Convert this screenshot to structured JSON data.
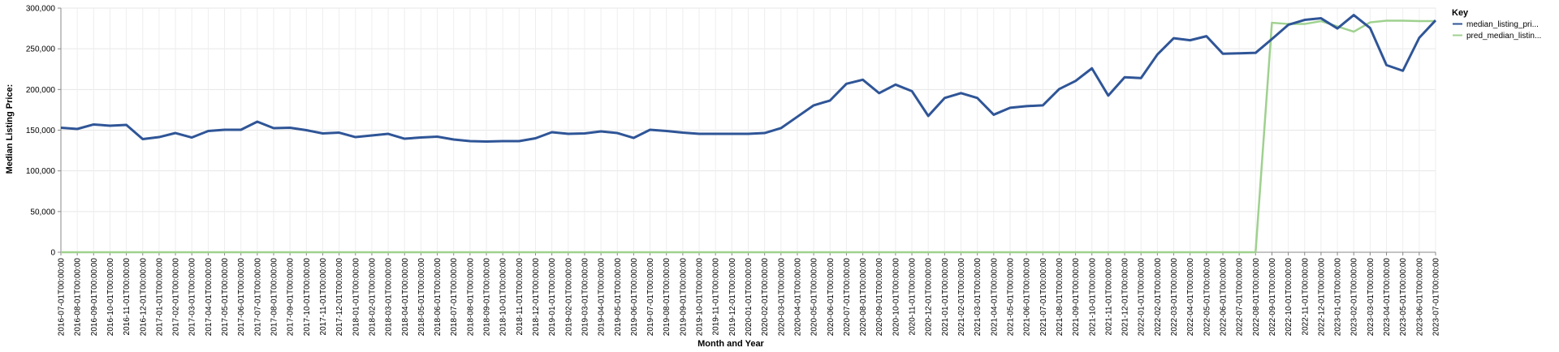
{
  "chart_data": {
    "type": "line",
    "xlabel": "Month and Year",
    "ylabel": "Median Listing Price:",
    "ylim": [
      0,
      300000
    ],
    "yticks": [
      0,
      50000,
      100000,
      150000,
      200000,
      250000,
      300000
    ],
    "ytick_labels": [
      "0",
      "50,000",
      "100,000",
      "150,000",
      "200,000",
      "250,000",
      "300,000"
    ],
    "grid": true,
    "legend": {
      "title": "Key",
      "position": "right"
    },
    "x": [
      "2016-07-01T00:00:00",
      "2016-08-01T00:00:00",
      "2016-09-01T00:00:00",
      "2016-10-01T00:00:00",
      "2016-11-01T00:00:00",
      "2016-12-01T00:00:00",
      "2017-01-01T00:00:00",
      "2017-02-01T00:00:00",
      "2017-03-01T00:00:00",
      "2017-04-01T00:00:00",
      "2017-05-01T00:00:00",
      "2017-06-01T00:00:00",
      "2017-07-01T00:00:00",
      "2017-08-01T00:00:00",
      "2017-09-01T00:00:00",
      "2017-10-01T00:00:00",
      "2017-11-01T00:00:00",
      "2017-12-01T00:00:00",
      "2018-01-01T00:00:00",
      "2018-02-01T00:00:00",
      "2018-03-01T00:00:00",
      "2018-04-01T00:00:00",
      "2018-05-01T00:00:00",
      "2018-06-01T00:00:00",
      "2018-07-01T00:00:00",
      "2018-08-01T00:00:00",
      "2018-09-01T00:00:00",
      "2018-10-01T00:00:00",
      "2018-11-01T00:00:00",
      "2018-12-01T00:00:00",
      "2019-01-01T00:00:00",
      "2019-02-01T00:00:00",
      "2019-03-01T00:00:00",
      "2019-04-01T00:00:00",
      "2019-05-01T00:00:00",
      "2019-06-01T00:00:00",
      "2019-07-01T00:00:00",
      "2019-08-01T00:00:00",
      "2019-09-01T00:00:00",
      "2019-10-01T00:00:00",
      "2019-11-01T00:00:00",
      "2019-12-01T00:00:00",
      "2020-01-01T00:00:00",
      "2020-02-01T00:00:00",
      "2020-03-01T00:00:00",
      "2020-04-01T00:00:00",
      "2020-05-01T00:00:00",
      "2020-06-01T00:00:00",
      "2020-07-01T00:00:00",
      "2020-08-01T00:00:00",
      "2020-09-01T00:00:00",
      "2020-10-01T00:00:00",
      "2020-11-01T00:00:00",
      "2020-12-01T00:00:00",
      "2021-01-01T00:00:00",
      "2021-02-01T00:00:00",
      "2021-03-01T00:00:00",
      "2021-04-01T00:00:00",
      "2021-05-01T00:00:00",
      "2021-06-01T00:00:00",
      "2021-07-01T00:00:00",
      "2021-08-01T00:00:00",
      "2021-09-01T00:00:00",
      "2021-10-01T00:00:00",
      "2021-11-01T00:00:00",
      "2021-12-01T00:00:00",
      "2022-01-01T00:00:00",
      "2022-02-01T00:00:00",
      "2022-03-01T00:00:00",
      "2022-04-01T00:00:00",
      "2022-05-01T00:00:00",
      "2022-06-01T00:00:00",
      "2022-07-01T00:00:00",
      "2022-08-01T00:00:00",
      "2022-09-01T00:00:00",
      "2022-10-01T00:00:00",
      "2022-11-01T00:00:00",
      "2022-12-01T00:00:00",
      "2023-01-01T00:00:00",
      "2023-02-01T00:00:00",
      "2023-03-01T00:00:00",
      "2023-04-01T00:00:00",
      "2023-05-01T00:00:00",
      "2023-06-01T00:00:00",
      "2023-07-01T00:00:00"
    ],
    "series": [
      {
        "name": "median_listing_pri...",
        "color": "#2f5597",
        "values": [
          153000,
          151500,
          157000,
          155500,
          156500,
          139000,
          141500,
          146500,
          141000,
          149000,
          150500,
          150500,
          160500,
          152500,
          153000,
          150000,
          146000,
          147000,
          141500,
          143500,
          145500,
          139500,
          141000,
          142000,
          138500,
          136500,
          136000,
          136500,
          136500,
          140000,
          147500,
          145500,
          146000,
          148500,
          146500,
          140500,
          150500,
          149000,
          147000,
          145500,
          145500,
          145500,
          145500,
          146500,
          152500,
          166500,
          180500,
          186500,
          207000,
          212000,
          195500,
          206000,
          198000,
          167500,
          189500,
          195500,
          189500,
          169000,
          177500,
          179500,
          180500,
          200500,
          210500,
          226000,
          192500,
          215000,
          214000,
          243000,
          263000,
          260500,
          265500,
          244000,
          244500,
          245000,
          262000,
          279500,
          285500,
          287500,
          275000,
          291500,
          275500,
          230000,
          223000,
          263500,
          285000
        ]
      },
      {
        "name": "pred_median_listin...",
        "color": "#9fd18f",
        "values": [
          0,
          0,
          0,
          0,
          0,
          0,
          0,
          0,
          0,
          0,
          0,
          0,
          0,
          0,
          0,
          0,
          0,
          0,
          0,
          0,
          0,
          0,
          0,
          0,
          0,
          0,
          0,
          0,
          0,
          0,
          0,
          0,
          0,
          0,
          0,
          0,
          0,
          0,
          0,
          0,
          0,
          0,
          0,
          0,
          0,
          0,
          0,
          0,
          0,
          0,
          0,
          0,
          0,
          0,
          0,
          0,
          0,
          0,
          0,
          0,
          0,
          0,
          0,
          0,
          0,
          0,
          0,
          0,
          0,
          0,
          0,
          0,
          0,
          0,
          282000,
          280500,
          280500,
          284000,
          277500,
          271000,
          282500,
          284500,
          284500,
          284000,
          284000
        ]
      }
    ]
  }
}
